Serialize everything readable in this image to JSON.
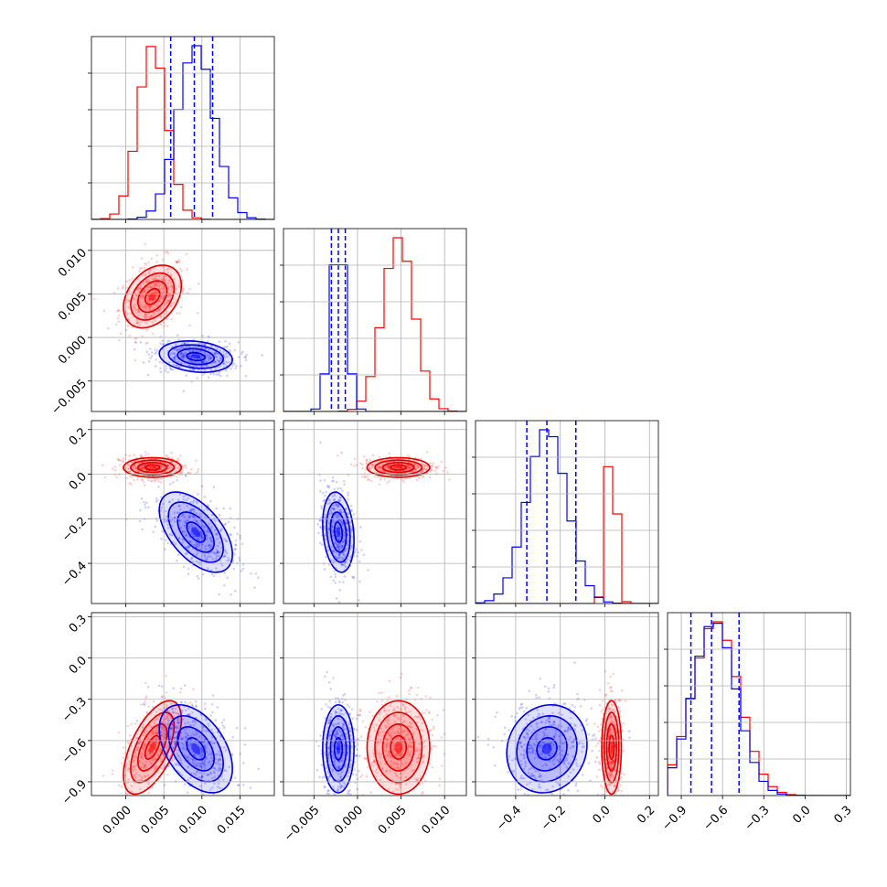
{
  "colors": {
    "red": "#ff0000",
    "blue": "#0000ff"
  },
  "chart_data": {
    "type": "corner",
    "grid": true,
    "params": [
      {
        "range": [
          -0.0045,
          0.0195
        ],
        "ticks": [
          0.0,
          0.005,
          0.01,
          0.015
        ],
        "tick_labels": [
          "0.000",
          "0.005",
          "0.010",
          "0.015"
        ]
      },
      {
        "range": [
          -0.0085,
          0.0125
        ],
        "ticks": [
          -0.005,
          0.0,
          0.005,
          0.01
        ],
        "tick_labels": [
          "−0.005",
          "0.000",
          "0.005",
          "0.010"
        ]
      },
      {
        "range": [
          -0.58,
          0.24
        ],
        "ticks": [
          -0.4,
          -0.2,
          0.0,
          0.2
        ],
        "tick_labels": [
          "−0.4",
          "−0.2",
          "0.0",
          "0.2"
        ]
      },
      {
        "range": [
          -1.0,
          0.33
        ],
        "ticks": [
          -0.9,
          -0.6,
          -0.3,
          0.0,
          0.3
        ],
        "tick_labels": [
          "−0.9",
          "−0.6",
          "−0.3",
          "0.0",
          "0.3"
        ]
      }
    ],
    "series": [
      {
        "color": "#ff0000",
        "mean": [
          0.0035,
          0.0047,
          0.03,
          -0.65
        ],
        "std": [
          0.0019,
          0.0018,
          0.022,
          0.17
        ],
        "corr": [
          [
            0,
            1,
            0.35
          ],
          [
            0,
            3,
            0.6
          ],
          [
            1,
            3,
            0.0
          ],
          [
            2,
            3,
            0.0
          ]
        ]
      },
      {
        "color": "#0000ff",
        "mean": [
          0.0092,
          -0.0022,
          -0.26,
          -0.66
        ],
        "std": [
          0.0024,
          0.0009,
          0.09,
          0.16
        ],
        "corr": [
          [
            0,
            1,
            -0.2
          ],
          [
            0,
            2,
            -0.55
          ],
          [
            0,
            3,
            -0.45
          ],
          [
            1,
            2,
            -0.2
          ],
          [
            2,
            3,
            0.1
          ]
        ]
      }
    ],
    "quantiles": {
      "color": "#0000ff",
      "values": [
        [
          0.0059,
          0.009,
          0.0114
        ],
        [
          -0.003,
          -0.0022,
          -0.0014
        ],
        [
          -0.35,
          -0.26,
          -0.13
        ],
        [
          -0.83,
          -0.68,
          -0.48
        ]
      ]
    }
  }
}
